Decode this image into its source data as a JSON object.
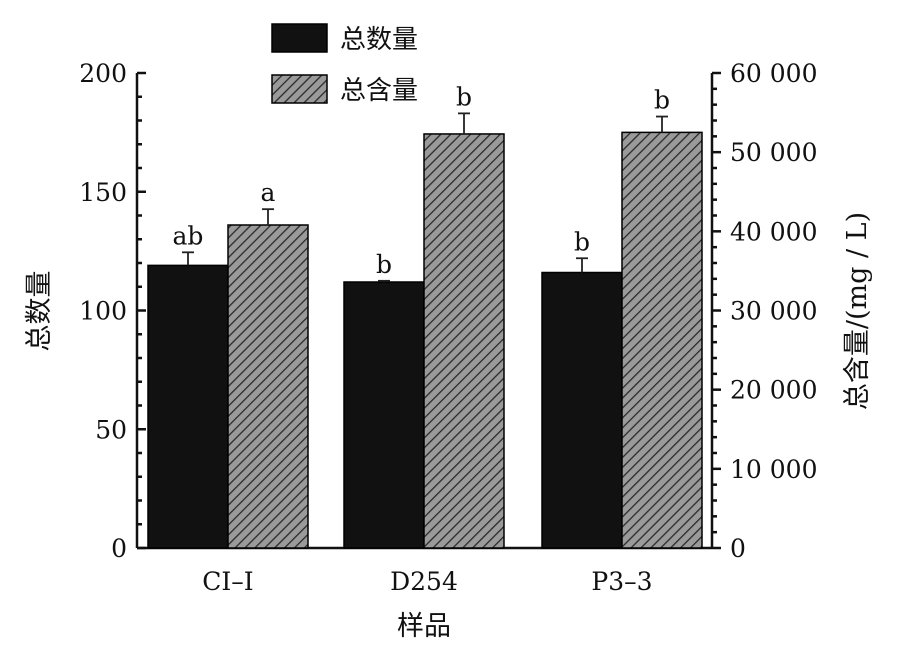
{
  "chart_data": {
    "type": "bar",
    "categories": [
      "CI–I",
      "D254",
      "P3–3"
    ],
    "xlabel": "样品",
    "ylabel_left": "总数量",
    "ylabel_right": "总含量/(mg / L)",
    "ylim_left": [
      0,
      200
    ],
    "yticks_left": [
      0,
      50,
      100,
      150,
      200
    ],
    "yticks_left_labels": [
      "0",
      "50",
      "100",
      "150",
      "200"
    ],
    "ylim_right": [
      0,
      60000
    ],
    "yticks_right": [
      0,
      10000,
      20000,
      30000,
      40000,
      50000,
      60000
    ],
    "yticks_right_labels": [
      "0",
      "10 000",
      "20 000",
      "30 000",
      "40 000",
      "50 000",
      "60 000"
    ],
    "grid": false,
    "legend_position": "top-center",
    "series": [
      {
        "name": "总数量",
        "axis": "left",
        "color": "#111111",
        "pattern": "solid",
        "values": [
          119,
          112,
          116
        ],
        "errors": [
          5.5,
          0.5,
          6
        ],
        "labels": [
          "ab",
          "b",
          "b"
        ]
      },
      {
        "name": "总含量",
        "axis": "right",
        "color": "#9a9a9a",
        "pattern": "hatched",
        "values": [
          40800,
          52300,
          52500
        ],
        "errors": [
          2000,
          2600,
          2000
        ],
        "labels": [
          "a",
          "b",
          "b"
        ]
      }
    ]
  }
}
